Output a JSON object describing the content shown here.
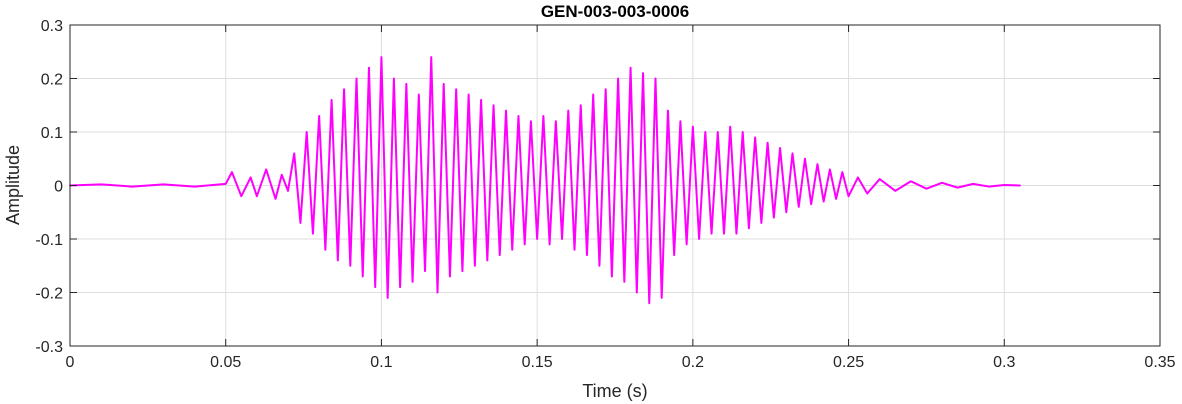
{
  "chart_data": {
    "type": "line",
    "title": "GEN-003-003-0006",
    "xlabel": "Time (s)",
    "ylabel": "Amplitude",
    "xlim": [
      0,
      0.35
    ],
    "ylim": [
      -0.3,
      0.3
    ],
    "grid": true,
    "line_color": "#FF00FF",
    "xticks": [
      0,
      0.05,
      0.1,
      0.15,
      0.2,
      0.25,
      0.3,
      0.35
    ],
    "xtick_labels": [
      "0",
      "0.05",
      "0.1",
      "0.15",
      "0.2",
      "0.25",
      "0.3",
      "0.35"
    ],
    "yticks": [
      -0.3,
      -0.2,
      -0.1,
      0,
      0.1,
      0.2,
      0.3
    ],
    "ytick_labels": [
      "-0.3",
      "-0.2",
      "-0.1",
      "0",
      "0.1",
      "0.2",
      "0.3"
    ],
    "series": [
      {
        "x": [
          0,
          0.01,
          0.02,
          0.03,
          0.04,
          0.05,
          0.052,
          0.055,
          0.058,
          0.06,
          0.063,
          0.066,
          0.068,
          0.07,
          0.072,
          0.074,
          0.076,
          0.078,
          0.08,
          0.082,
          0.084,
          0.086,
          0.088,
          0.09,
          0.092,
          0.094,
          0.096,
          0.098,
          0.1,
          0.102,
          0.104,
          0.106,
          0.108,
          0.11,
          0.112,
          0.114,
          0.116,
          0.118,
          0.12,
          0.122,
          0.124,
          0.126,
          0.128,
          0.13,
          0.132,
          0.134,
          0.136,
          0.138,
          0.14,
          0.142,
          0.144,
          0.146,
          0.148,
          0.15,
          0.152,
          0.154,
          0.156,
          0.158,
          0.16,
          0.162,
          0.164,
          0.166,
          0.168,
          0.17,
          0.172,
          0.174,
          0.176,
          0.178,
          0.18,
          0.182,
          0.184,
          0.186,
          0.188,
          0.19,
          0.192,
          0.194,
          0.196,
          0.198,
          0.2,
          0.202,
          0.204,
          0.206,
          0.208,
          0.21,
          0.212,
          0.214,
          0.216,
          0.218,
          0.22,
          0.222,
          0.224,
          0.226,
          0.228,
          0.23,
          0.232,
          0.234,
          0.236,
          0.238,
          0.24,
          0.242,
          0.244,
          0.246,
          0.248,
          0.25,
          0.253,
          0.256,
          0.26,
          0.265,
          0.27,
          0.275,
          0.28,
          0.285,
          0.29,
          0.295,
          0.3,
          0.305
        ],
        "y": [
          0,
          0.002,
          -0.002,
          0.002,
          -0.002,
          0.003,
          0.025,
          -0.02,
          0.015,
          -0.02,
          0.03,
          -0.025,
          0.02,
          -0.01,
          0.06,
          -0.07,
          0.1,
          -0.09,
          0.13,
          -0.12,
          0.16,
          -0.14,
          0.18,
          -0.15,
          0.2,
          -0.17,
          0.22,
          -0.19,
          0.24,
          -0.21,
          0.2,
          -0.19,
          0.19,
          -0.18,
          0.17,
          -0.16,
          0.24,
          -0.2,
          0.19,
          -0.17,
          0.18,
          -0.16,
          0.17,
          -0.15,
          0.16,
          -0.14,
          0.15,
          -0.13,
          0.14,
          -0.12,
          0.13,
          -0.11,
          0.12,
          -0.1,
          0.13,
          -0.11,
          0.12,
          -0.1,
          0.14,
          -0.12,
          0.15,
          -0.13,
          0.17,
          -0.15,
          0.18,
          -0.17,
          0.2,
          -0.18,
          0.22,
          -0.2,
          0.21,
          -0.22,
          0.2,
          -0.21,
          0.14,
          -0.13,
          0.12,
          -0.11,
          0.11,
          -0.1,
          0.1,
          -0.09,
          0.1,
          -0.09,
          0.11,
          -0.09,
          0.1,
          -0.08,
          0.09,
          -0.07,
          0.08,
          -0.06,
          0.07,
          -0.05,
          0.06,
          -0.04,
          0.05,
          -0.035,
          0.04,
          -0.03,
          0.03,
          -0.025,
          0.025,
          -0.02,
          0.015,
          -0.015,
          0.012,
          -0.01,
          0.008,
          -0.006,
          0.005,
          -0.004,
          0.003,
          -0.002,
          0.001,
          0
        ]
      }
    ]
  }
}
